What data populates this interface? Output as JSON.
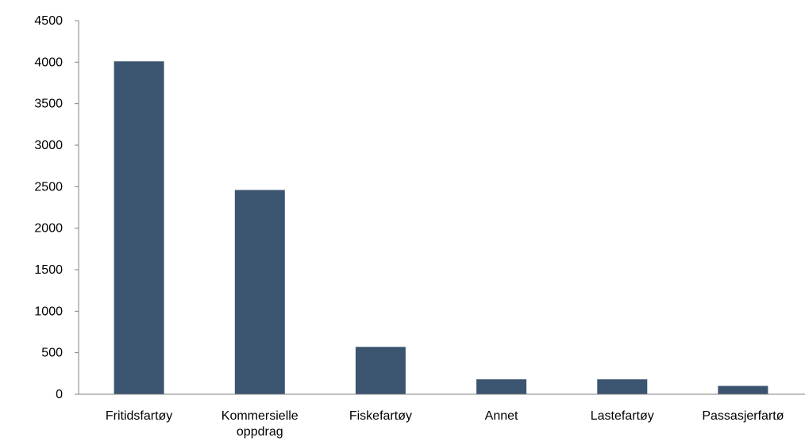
{
  "chart_data": {
    "type": "bar",
    "title": "",
    "xlabel": "",
    "ylabel": "",
    "categories": [
      "Fritidsfartøy",
      "Kommersielle oppdrag",
      "Fiskefartøy",
      "Annet",
      "Lastefartøy",
      "Passasjerfartø"
    ],
    "category_lines": [
      [
        "Fritidsfartøy"
      ],
      [
        "Kommersielle",
        "oppdrag"
      ],
      [
        "Fiskefartøy"
      ],
      [
        "Annet"
      ],
      [
        "Lastefartøy"
      ],
      [
        "Passasjerfartø"
      ]
    ],
    "values": [
      4010,
      2460,
      570,
      180,
      180,
      100
    ],
    "ylim": [
      0,
      4500
    ],
    "yticks": [
      0,
      500,
      1000,
      1500,
      2000,
      2500,
      3000,
      3500,
      4000,
      4500
    ],
    "grid": false,
    "legend": "none",
    "bar_color": "#3b5570"
  }
}
